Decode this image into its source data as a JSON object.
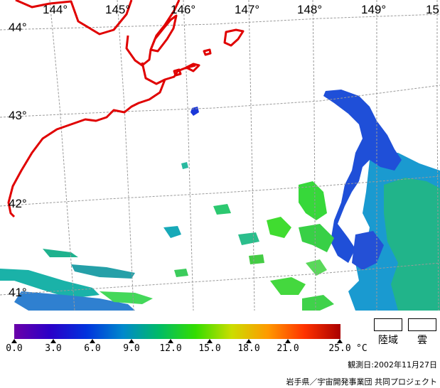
{
  "map": {
    "longitude_labels": [
      "144°",
      "145°",
      "146°",
      "147°",
      "148°",
      "149°",
      "15"
    ],
    "latitude_labels": [
      "44°",
      "43°",
      "42°",
      "41°"
    ],
    "coastline_color": "#e00000",
    "grid_color": "#9a9a9a"
  },
  "legend": {
    "ticks": [
      "0.0",
      "3.0",
      "6.0",
      "9.0",
      "12.0",
      "15.0",
      "18.0",
      "21.0",
      "25.0"
    ],
    "unit": "°C",
    "land_label": "陸域",
    "cloud_label": "雲",
    "colors": [
      "#6a00a8",
      "#2a00c8",
      "#0033dd",
      "#0088cc",
      "#00bb66",
      "#33dd00",
      "#ccdd00",
      "#ff9900",
      "#ff3300",
      "#aa0000"
    ]
  },
  "date_text": "観測日:2002年11月27日",
  "credit_text": "岩手県／宇宙開発事業団  共同プロジェクト"
}
